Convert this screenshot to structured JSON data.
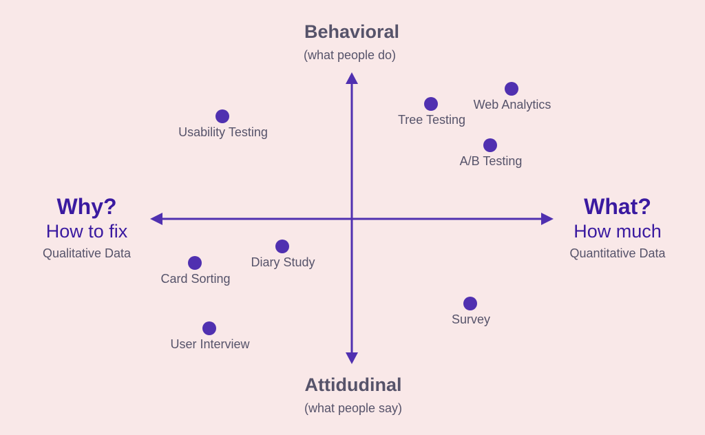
{
  "colors": {
    "background": "#f9e8e8",
    "axis": "#5030b0",
    "point": "#5030b0",
    "accent_text": "#3a1aa0",
    "text": "#56536a"
  },
  "top": {
    "title": "Behavioral",
    "subtitle": "(what people do)"
  },
  "bottom": {
    "title": "Attidudinal",
    "subtitle": "(what people say)"
  },
  "left": {
    "title": "Why?",
    "subtitle": "How to fix",
    "note": "Qualitative Data"
  },
  "right": {
    "title": "What?",
    "subtitle": "How much",
    "note": "Quantitative Data"
  },
  "points": [
    {
      "label": "Usability Testing",
      "quadrant": "top-left"
    },
    {
      "label": "Tree Testing",
      "quadrant": "top-right"
    },
    {
      "label": "Web Analytics",
      "quadrant": "top-right"
    },
    {
      "label": "A/B Testing",
      "quadrant": "top-right"
    },
    {
      "label": "Diary Study",
      "quadrant": "bottom-left"
    },
    {
      "label": "Card Sorting",
      "quadrant": "bottom-left"
    },
    {
      "label": "User Interview",
      "quadrant": "bottom-left"
    },
    {
      "label": "Survey",
      "quadrant": "bottom-right"
    }
  ]
}
